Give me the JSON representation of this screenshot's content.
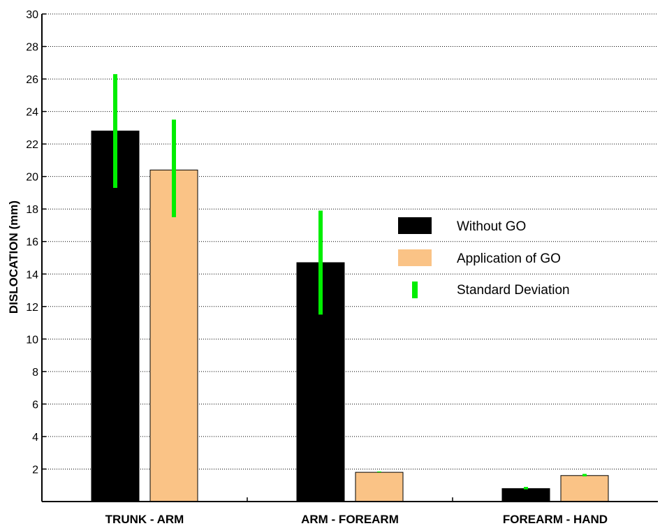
{
  "chart_data": {
    "type": "bar",
    "title": "",
    "xlabel": "",
    "ylabel": "DISLOCATION (mm)",
    "ylim": [
      0,
      30
    ],
    "yticks": [
      2,
      4,
      6,
      8,
      10,
      12,
      14,
      16,
      18,
      20,
      22,
      24,
      26,
      28,
      30
    ],
    "categories": [
      "TRUNK - ARM",
      "ARM - FOREARM",
      "FOREARM - HAND"
    ],
    "series": [
      {
        "name": "Without GO",
        "values": [
          22.8,
          14.7,
          0.8
        ],
        "color": "#000000",
        "error_low": [
          19.3,
          11.5,
          0.75
        ],
        "error_high": [
          26.3,
          17.9,
          0.9
        ]
      },
      {
        "name": "Application of GO",
        "values": [
          20.4,
          1.8,
          1.6
        ],
        "color": "#FAC386",
        "error_low": [
          17.5,
          1.8,
          1.55
        ],
        "error_high": [
          23.5,
          1.85,
          1.7
        ]
      }
    ],
    "error_bar": {
      "name": "Standard Deviation",
      "color": "#00EE00"
    },
    "grid": true,
    "grid_style": "dotted-horizontal",
    "legend_position": "right"
  }
}
